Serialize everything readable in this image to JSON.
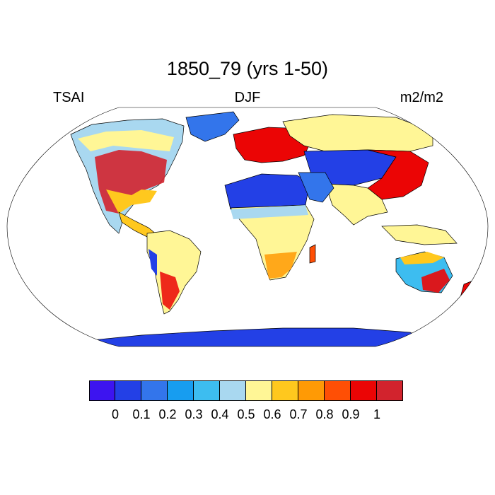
{
  "header": {
    "title": "1850_79 (yrs 1-50)",
    "left": "TSAI",
    "center": "DJF",
    "right": "m2/m2"
  },
  "colorbar": {
    "colors": [
      "#3d14f0",
      "#2340e6",
      "#3375eb",
      "#179df0",
      "#3dbdf0",
      "#a9d8f0",
      "#fff696",
      "#ffc81e",
      "#ff9a05",
      "#ff4f05",
      "#eb0505",
      "#d2232d"
    ],
    "labels": [
      "0",
      "0.1",
      "0.2",
      "0.3",
      "0.4",
      "0.5",
      "0.6",
      "0.7",
      "0.8",
      "0.9",
      "1"
    ]
  }
}
